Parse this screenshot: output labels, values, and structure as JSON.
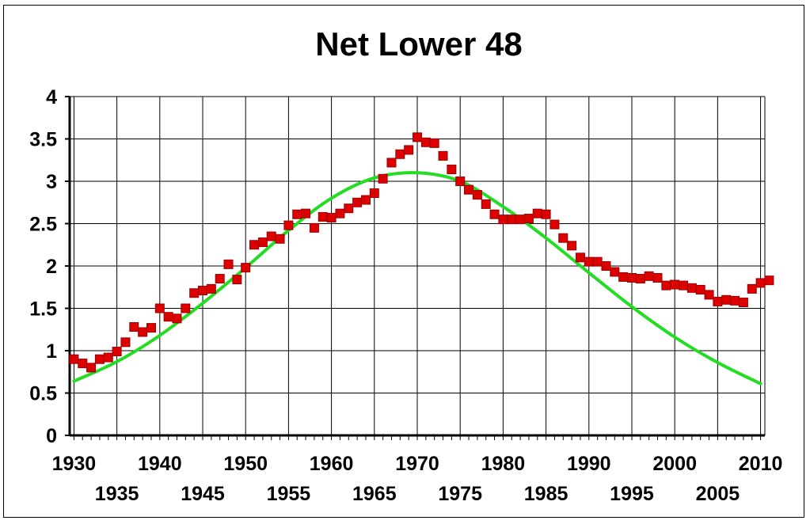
{
  "chart_data": {
    "type": "scatter",
    "title": "Net Lower 48",
    "xlabel": "",
    "ylabel": "",
    "xlim": [
      1929.5,
      2010.5
    ],
    "ylim": [
      0,
      4
    ],
    "grid": true,
    "x_ticks": [
      1930,
      1935,
      1940,
      1945,
      1950,
      1955,
      1960,
      1965,
      1970,
      1975,
      1980,
      1985,
      1990,
      1995,
      2000,
      2005,
      2010
    ],
    "x_tick_labels": [
      "1930",
      "1935",
      "1940",
      "1945",
      "1950",
      "1955",
      "1960",
      "1965",
      "1970",
      "1975",
      "1980",
      "1985",
      "1990",
      "1995",
      "2000",
      "2005",
      "2010"
    ],
    "y_ticks": [
      0,
      0.5,
      1,
      1.5,
      2,
      2.5,
      3,
      3.5,
      4
    ],
    "y_tick_labels": [
      "0",
      "0.5",
      "1",
      "1.5",
      "2",
      "2.5",
      "3",
      "3.5",
      "4"
    ],
    "series": [
      {
        "kind": "markers",
        "color": "#dd0000",
        "x": [
          1930,
          1931,
          1932,
          1933,
          1934,
          1935,
          1936,
          1937,
          1938,
          1939,
          1940,
          1941,
          1942,
          1943,
          1944,
          1945,
          1946,
          1947,
          1948,
          1949,
          1950,
          1951,
          1952,
          1953,
          1954,
          1955,
          1956,
          1957,
          1958,
          1959,
          1960,
          1961,
          1962,
          1963,
          1964,
          1965,
          1966,
          1967,
          1968,
          1969,
          1970,
          1971,
          1972,
          1973,
          1974,
          1975,
          1976,
          1977,
          1978,
          1979,
          1980,
          1981,
          1982,
          1983,
          1984,
          1985,
          1986,
          1987,
          1988,
          1989,
          1990,
          1991,
          1992,
          1993,
          1994,
          1995,
          1996,
          1997,
          1998,
          1999,
          2000,
          2001,
          2002,
          2003,
          2004,
          2005,
          2006,
          2007,
          2008,
          2009,
          2010,
          2011
        ],
        "y": [
          0.9,
          0.85,
          0.8,
          0.9,
          0.92,
          0.99,
          1.1,
          1.28,
          1.22,
          1.27,
          1.5,
          1.4,
          1.38,
          1.5,
          1.68,
          1.71,
          1.73,
          1.85,
          2.02,
          1.84,
          1.98,
          2.25,
          2.28,
          2.35,
          2.32,
          2.48,
          2.61,
          2.62,
          2.45,
          2.58,
          2.57,
          2.62,
          2.68,
          2.75,
          2.78,
          2.86,
          3.03,
          3.22,
          3.32,
          3.37,
          3.52,
          3.46,
          3.45,
          3.3,
          3.14,
          3.0,
          2.9,
          2.84,
          2.73,
          2.61,
          2.55,
          2.55,
          2.55,
          2.56,
          2.62,
          2.61,
          2.49,
          2.33,
          2.24,
          2.1,
          2.05,
          2.05,
          2.0,
          1.93,
          1.87,
          1.86,
          1.85,
          1.88,
          1.86,
          1.77,
          1.78,
          1.77,
          1.74,
          1.72,
          1.66,
          1.58,
          1.6,
          1.59,
          1.57,
          1.73,
          1.8,
          1.83
        ]
      },
      {
        "kind": "fitted-curve",
        "color": "#22dd22",
        "peak_year": 1970,
        "peak_value": 3.1,
        "x": [
          1930,
          1935,
          1940,
          1945,
          1950,
          1955,
          1960,
          1965,
          1970,
          1975,
          1980,
          1985,
          1990,
          1995,
          2000,
          2005,
          2010
        ],
        "y": [
          0.64,
          0.87,
          1.18,
          1.56,
          1.98,
          2.42,
          2.8,
          3.04,
          3.1,
          3.0,
          2.7,
          2.33,
          1.92,
          1.52,
          1.16,
          0.86,
          0.61
        ]
      }
    ]
  }
}
